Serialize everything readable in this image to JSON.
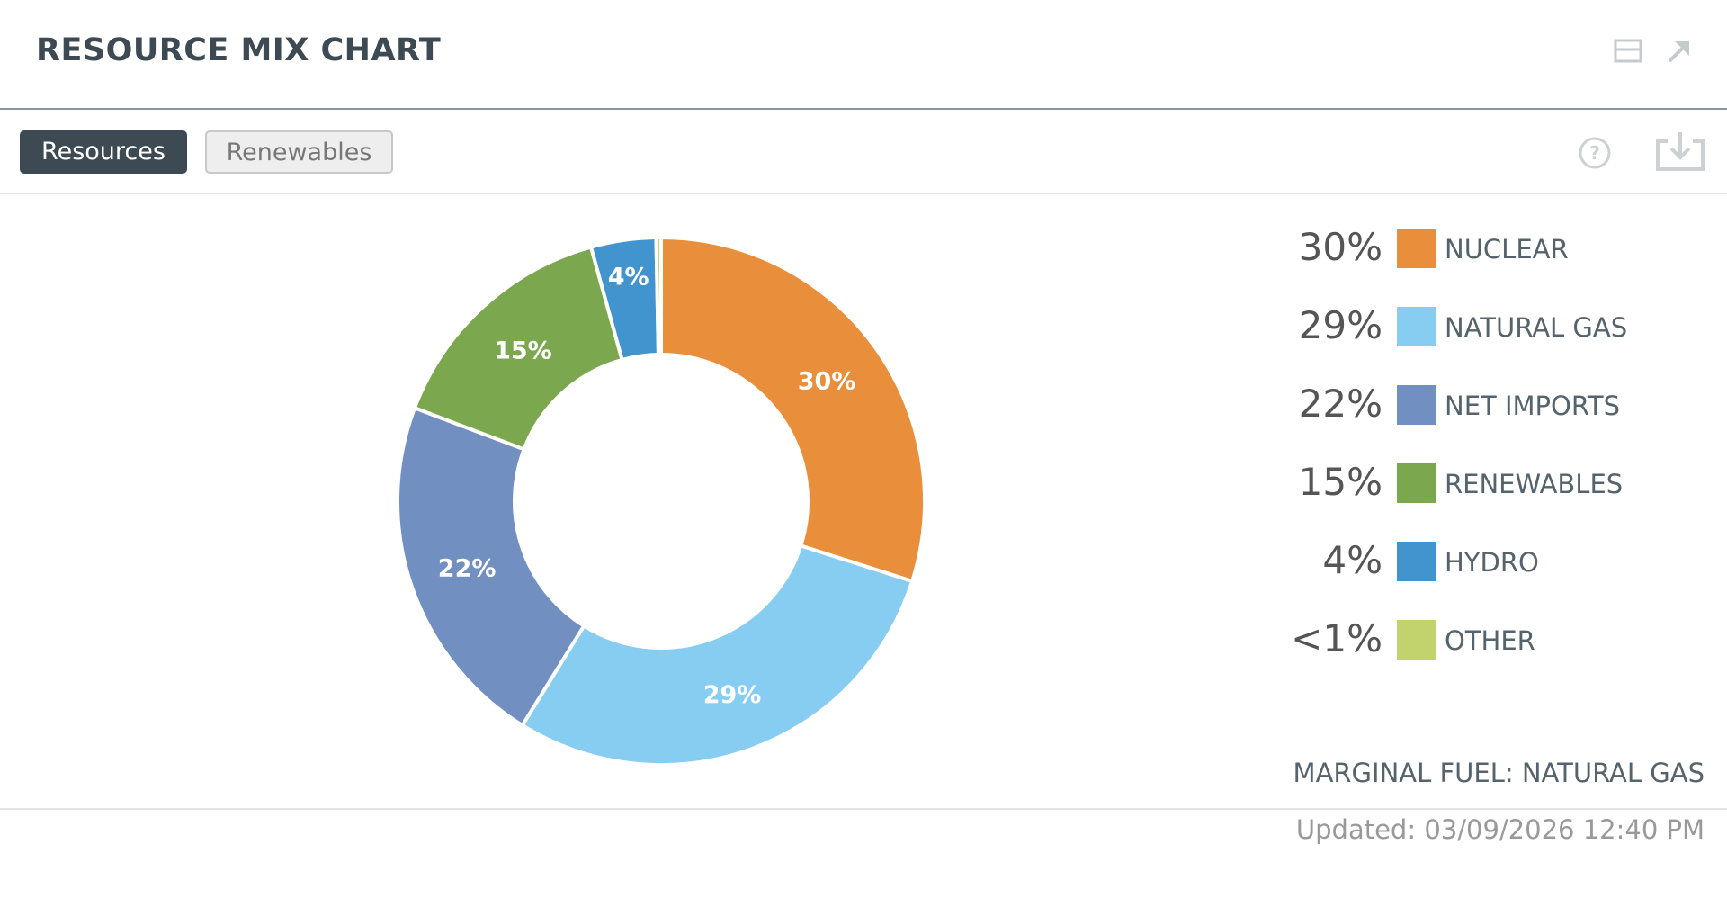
{
  "header": {
    "title": "RESOURCE MIX CHART",
    "icons": [
      "panel-icon",
      "expand-arrow-icon"
    ]
  },
  "toolbar": {
    "tabs": [
      {
        "label": "Resources",
        "active": true
      },
      {
        "label": "Renewables",
        "active": false
      }
    ],
    "icons": [
      "help-icon",
      "download-icon"
    ]
  },
  "chart_data": {
    "type": "pie",
    "variant": "donut",
    "legend_position": "right",
    "slices": [
      {
        "name": "NUCLEAR",
        "value": 30,
        "label": "30%",
        "color": "#E98F3C"
      },
      {
        "name": "NATURAL GAS",
        "value": 29,
        "label": "29%",
        "color": "#86CDF1"
      },
      {
        "name": "NET IMPORTS",
        "value": 22,
        "label": "22%",
        "color": "#728FC2"
      },
      {
        "name": "RENEWABLES",
        "value": 15,
        "label": "15%",
        "color": "#7BA84E"
      },
      {
        "name": "HYDRO",
        "value": 4,
        "label": "4%",
        "color": "#4294CE"
      },
      {
        "name": "OTHER",
        "value": 0.3,
        "label": "<1%",
        "color": "#C2D26C"
      }
    ]
  },
  "footer": {
    "marginal_fuel": "MARGINAL FUEL: NATURAL GAS",
    "updated": "Updated: 03/09/2026 12:40 PM"
  }
}
